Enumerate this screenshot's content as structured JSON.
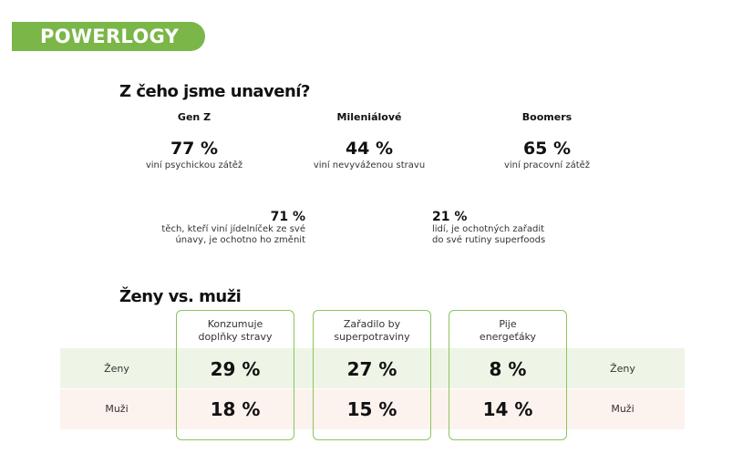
{
  "brand": "POWERLOGY",
  "section1": {
    "title": "Z čeho jsme unavení?",
    "groups": [
      {
        "label": "Gen Z",
        "value": "77 %",
        "caption": "viní psychickou zátěž"
      },
      {
        "label": "Mileniálové",
        "value": "44 %",
        "caption": "viní nevyváženou stravu"
      },
      {
        "label": "Boomers",
        "value": "65 %",
        "caption": "viní pracovní zátěž"
      }
    ],
    "stats": [
      {
        "value": "71 %",
        "line1": "těch, kteří viní jídelníček ze své",
        "line2": "únavy, je ochotno ho změnit"
      },
      {
        "value": "21 %",
        "line1": "lidí, je ochotných zařadit",
        "line2": "do své rutiny superfoods"
      }
    ]
  },
  "section2": {
    "title": "Ženy vs. muži",
    "rows": {
      "women": "Ženy",
      "men": "Muži"
    },
    "columns": [
      {
        "line1": "Konzumuje",
        "line2": "doplňky stravy",
        "women": "29 %",
        "men": "18 %"
      },
      {
        "line1": "Zařadilo by",
        "line2": "superpotraviny",
        "women": "27 %",
        "men": "15 %"
      },
      {
        "line1": "Pije",
        "line2": "energeťáky",
        "women": "8 %",
        "men": "14 %"
      }
    ]
  },
  "colors": {
    "brand": "#7ab648",
    "women_row": "#eef5e6",
    "men_row": "#fcf2ee"
  }
}
